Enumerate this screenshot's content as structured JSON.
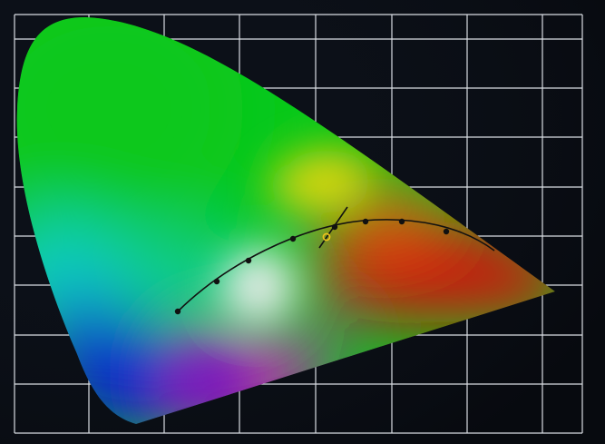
{
  "diagram": {
    "name": "chromaticity-diagram",
    "background": "#0b0f17",
    "grid_color": "#d9dde3",
    "locus_palette": {
      "green": "#08c81a",
      "cyan": "#0ecfd0",
      "blue": "#0a1bd6",
      "violet": "#6a08c8",
      "magenta": "#d40ec9",
      "red": "#d70f0f",
      "orange": "#e36a0b",
      "yellow": "#e2d90e",
      "white": "#f6f0f6"
    },
    "curve_color": "#111111",
    "current_point_color": "#f1c21b",
    "planckian_locus_point_count": 8,
    "has_current_point_marker": true
  }
}
